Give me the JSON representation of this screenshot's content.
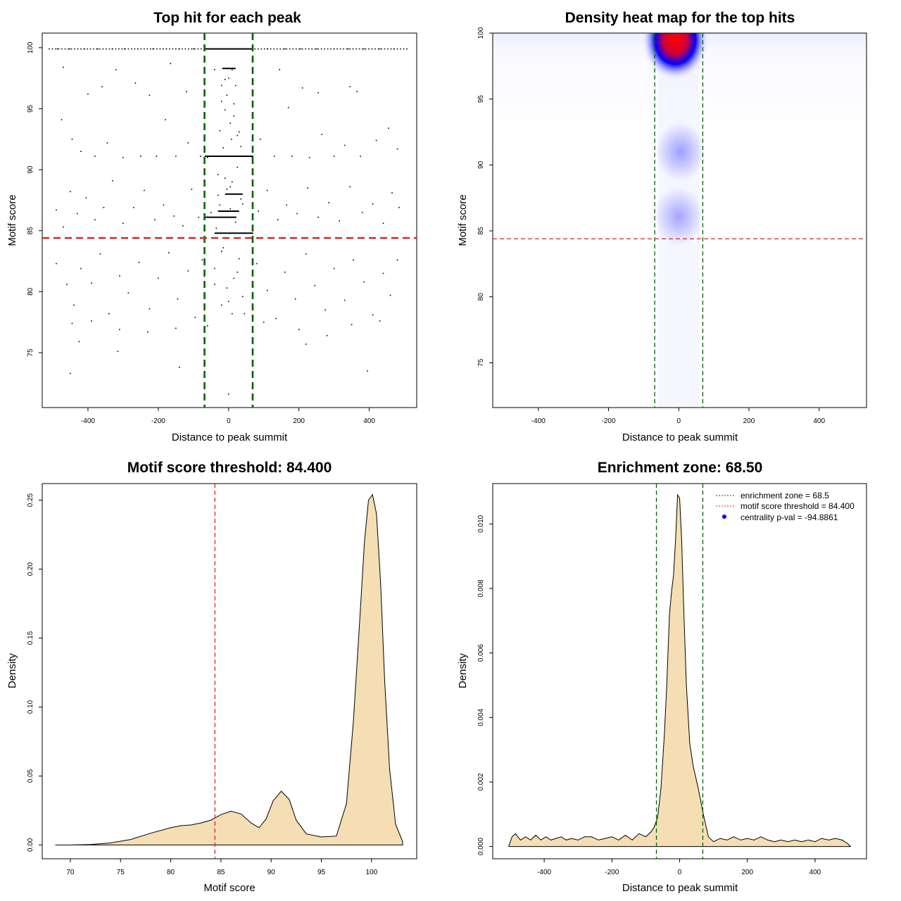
{
  "colors": {
    "points": "#000000",
    "zone_line": "#006400",
    "threshold_line": "#d62728",
    "density_fill": "#f5deb3",
    "heat_low": "#ffffff",
    "heat_mid": "#0000ff",
    "heat_high": "#ff0000"
  },
  "chart_data": [
    {
      "type": "scatter",
      "title": "Top hit for each peak",
      "xlabel": "Distance to peak summit",
      "ylabel": "Motif score",
      "xlim": [
        -530,
        535
      ],
      "ylim": [
        70.5,
        101.2
      ],
      "xticks": [
        -400,
        -200,
        0,
        200,
        400
      ],
      "yticks": [
        75,
        80,
        85,
        90,
        95,
        100
      ],
      "tick_labels_x": [
        "-400",
        "-200",
        "0",
        "200",
        "400"
      ],
      "tick_labels_y": [
        "75",
        "80",
        "85",
        "90",
        "95",
        "100"
      ],
      "score_threshold": 84.4,
      "enrichment_zone": [
        -68.5,
        68.5
      ],
      "points": [
        [
          -487,
          99.9
        ],
        [
          -452,
          99.9
        ],
        [
          -410,
          99.9
        ],
        [
          -372,
          99.9
        ],
        [
          -331,
          99.9
        ],
        [
          -296,
          99.9
        ],
        [
          -258,
          99.9
        ],
        [
          -215,
          99.9
        ],
        [
          -177,
          99.9
        ],
        [
          -140,
          99.9
        ],
        [
          -100,
          99.9
        ],
        [
          -60,
          99.9
        ],
        [
          -30,
          99.9
        ],
        [
          -10,
          99.9
        ],
        [
          10,
          99.9
        ],
        [
          30,
          99.9
        ],
        [
          60,
          99.9
        ],
        [
          110,
          99.9
        ],
        [
          160,
          99.9
        ],
        [
          205,
          99.9
        ],
        [
          250,
          99.9
        ],
        [
          300,
          99.9
        ],
        [
          340,
          99.9
        ],
        [
          385,
          99.9
        ],
        [
          430,
          99.9
        ],
        [
          470,
          99.9
        ],
        [
          -470,
          98.4
        ],
        [
          -400,
          96.2
        ],
        [
          -360,
          96.8
        ],
        [
          -320,
          98.2
        ],
        [
          -265,
          97.1
        ],
        [
          -225,
          96.1
        ],
        [
          -165,
          98.7
        ],
        [
          -120,
          96.4
        ],
        [
          -40,
          98.2
        ],
        [
          -20,
          96.9
        ],
        [
          -10,
          94.9
        ],
        [
          5,
          93.8
        ],
        [
          15,
          95.4
        ],
        [
          25,
          92.8
        ],
        [
          -25,
          93.2
        ],
        [
          35,
          91.9
        ],
        [
          0,
          97.5
        ],
        [
          10,
          98.2
        ],
        [
          -5,
          96.1
        ],
        [
          20,
          96.9
        ],
        [
          145,
          98.2
        ],
        [
          170,
          95.1
        ],
        [
          210,
          96.7
        ],
        [
          255,
          96.3
        ],
        [
          345,
          96.8
        ],
        [
          365,
          96.4
        ],
        [
          -475,
          94.1
        ],
        [
          -445,
          92.5
        ],
        [
          -420,
          91.5
        ],
        [
          -380,
          91.1
        ],
        [
          -345,
          92.2
        ],
        [
          -300,
          91.0
        ],
        [
          -250,
          91.1
        ],
        [
          -205,
          91.1
        ],
        [
          -180,
          94.1
        ],
        [
          -150,
          91.1
        ],
        [
          -115,
          92.2
        ],
        [
          -80,
          91.1
        ],
        [
          -60,
          91.0
        ],
        [
          60,
          91.1
        ],
        [
          90,
          92.5
        ],
        [
          130,
          91.1
        ],
        [
          180,
          91.1
        ],
        [
          230,
          91.0
        ],
        [
          265,
          92.9
        ],
        [
          300,
          91.1
        ],
        [
          330,
          92.0
        ],
        [
          375,
          91.1
        ],
        [
          420,
          92.4
        ],
        [
          455,
          93.4
        ],
        [
          480,
          91.7
        ],
        [
          -490,
          86.7
        ],
        [
          -470,
          85.3
        ],
        [
          -450,
          88.2
        ],
        [
          -430,
          86.4
        ],
        [
          -405,
          87.7
        ],
        [
          -380,
          85.9
        ],
        [
          -355,
          86.9
        ],
        [
          -330,
          89.1
        ],
        [
          -300,
          85.6
        ],
        [
          -270,
          86.9
        ],
        [
          -240,
          88.3
        ],
        [
          -210,
          85.9
        ],
        [
          -185,
          87.1
        ],
        [
          -155,
          86.2
        ],
        [
          -130,
          85.4
        ],
        [
          -105,
          88.4
        ],
        [
          -85,
          86.1
        ],
        [
          -50,
          86.5
        ],
        [
          -30,
          87.9
        ],
        [
          -10,
          89.3
        ],
        [
          5,
          88.6
        ],
        [
          20,
          86.6
        ],
        [
          40,
          87.2
        ],
        [
          85,
          86.6
        ],
        [
          110,
          88.3
        ],
        [
          140,
          85.9
        ],
        [
          165,
          87.1
        ],
        [
          195,
          86.4
        ],
        [
          225,
          88.5
        ],
        [
          255,
          86.1
        ],
        [
          285,
          87.3
        ],
        [
          315,
          85.8
        ],
        [
          345,
          88.6
        ],
        [
          380,
          86.5
        ],
        [
          410,
          87.2
        ],
        [
          440,
          85.6
        ],
        [
          465,
          88.1
        ],
        [
          485,
          86.9
        ],
        [
          -490,
          82.3
        ],
        [
          -460,
          80.6
        ],
        [
          -440,
          78.9
        ],
        [
          -420,
          81.9
        ],
        [
          -390,
          80.7
        ],
        [
          -365,
          83.1
        ],
        [
          -340,
          78.2
        ],
        [
          -310,
          81.3
        ],
        [
          -285,
          79.9
        ],
        [
          -255,
          82.4
        ],
        [
          -225,
          78.6
        ],
        [
          -200,
          81.1
        ],
        [
          -170,
          83.2
        ],
        [
          -145,
          79.4
        ],
        [
          -115,
          81.7
        ],
        [
          -95,
          77.9
        ],
        [
          -75,
          82.6
        ],
        [
          -40,
          80.6
        ],
        [
          -20,
          83.3
        ],
        [
          0,
          79.2
        ],
        [
          25,
          81.6
        ],
        [
          45,
          78.2
        ],
        [
          80,
          82.3
        ],
        [
          110,
          80.1
        ],
        [
          135,
          77.8
        ],
        [
          160,
          81.6
        ],
        [
          190,
          79.4
        ],
        [
          220,
          83.1
        ],
        [
          245,
          80.5
        ],
        [
          275,
          78.5
        ],
        [
          300,
          81.9
        ],
        [
          330,
          79.3
        ],
        [
          355,
          82.6
        ],
        [
          385,
          80.8
        ],
        [
          410,
          78.1
        ],
        [
          440,
          81.5
        ],
        [
          460,
          79.7
        ],
        [
          480,
          82.6
        ],
        [
          -445,
          77.4
        ],
        [
          -390,
          77.6
        ],
        [
          -310,
          76.9
        ],
        [
          -230,
          76.7
        ],
        [
          -150,
          77.0
        ],
        [
          -60,
          77.2
        ],
        [
          100,
          77.5
        ],
        [
          200,
          76.9
        ],
        [
          280,
          76.4
        ],
        [
          350,
          77.3
        ],
        [
          430,
          77.6
        ],
        [
          -425,
          75.9
        ],
        [
          -315,
          75.1
        ],
        [
          -140,
          73.8
        ],
        [
          220,
          75.7
        ],
        [
          395,
          73.5
        ],
        [
          -450,
          73.3
        ],
        [
          0,
          71.6
        ],
        [
          -10,
          97.4
        ],
        [
          15,
          94.4
        ],
        [
          -20,
          95.6
        ],
        [
          30,
          93.1
        ],
        [
          8,
          92.5
        ],
        [
          -15,
          91.8
        ],
        [
          25,
          90.2
        ],
        [
          -30,
          89.6
        ],
        [
          10,
          89.0
        ],
        [
          -5,
          88.4
        ],
        [
          35,
          87.6
        ],
        [
          -25,
          87.1
        ],
        [
          5,
          86.8
        ],
        [
          20,
          85.7
        ],
        [
          -35,
          85.2
        ],
        [
          0,
          84.4
        ],
        [
          -15,
          83.6
        ],
        [
          30,
          82.7
        ],
        [
          -40,
          81.9
        ],
        [
          15,
          81.1
        ],
        [
          -5,
          80.3
        ],
        [
          40,
          79.6
        ],
        [
          -20,
          78.9
        ],
        [
          10,
          78.2
        ]
      ],
      "hlines": [
        {
          "y": 91.1,
          "x0": -68,
          "x1": 70
        },
        {
          "y": 86.1,
          "x0": -68,
          "x1": 22
        },
        {
          "y": 86.6,
          "x0": -30,
          "x1": 30
        },
        {
          "y": 88.0,
          "x0": -10,
          "x1": 40
        },
        {
          "y": 84.8,
          "x0": -40,
          "x1": 70
        },
        {
          "y": 98.3,
          "x0": -18,
          "x1": 20
        }
      ],
      "top_band": {
        "y": 99.9,
        "x0": -68,
        "x1": 68
      }
    },
    {
      "type": "heatmap",
      "title": "Density heat map for the top hits",
      "xlabel": "Distance to peak summit",
      "ylabel": "Motif score",
      "xlim": [
        -530,
        535
      ],
      "ylim": [
        71.6,
        100.0
      ],
      "xticks": [
        -400,
        -200,
        0,
        200,
        400
      ],
      "yticks": [
        75,
        80,
        85,
        90,
        95,
        100
      ],
      "tick_labels_x": [
        "-400",
        "-200",
        "0",
        "200",
        "400"
      ],
      "tick_labels_y": [
        "75",
        "80",
        "85",
        "90",
        "95",
        "100"
      ],
      "score_threshold": 84.4,
      "enrichment_zone": [
        -68.5,
        68.5
      ],
      "hotspots": [
        {
          "x": -10,
          "y": 99.5,
          "intensity": 1.0
        },
        {
          "x": 5,
          "y": 91.0,
          "intensity": 0.25
        },
        {
          "x": 0,
          "y": 86.1,
          "intensity": 0.2
        }
      ]
    },
    {
      "type": "area",
      "title": "Motif score threshold: 84.400",
      "xlabel": "Motif score",
      "ylabel": "Density",
      "xlim": [
        67.2,
        104.5
      ],
      "ylim": [
        -0.01,
        0.262
      ],
      "xticks": [
        70,
        75,
        80,
        85,
        90,
        95,
        100
      ],
      "yticks": [
        0.0,
        0.05,
        0.1,
        0.15,
        0.2,
        0.25
      ],
      "tick_labels_x": [
        "70",
        "75",
        "80",
        "85",
        "90",
        "95",
        "100"
      ],
      "tick_labels_y": [
        "0.00",
        "0.05",
        "0.10",
        "0.15",
        "0.20",
        "0.25"
      ],
      "score_threshold": 84.4,
      "x": [
        68.5,
        70,
        72,
        74,
        76,
        78,
        80,
        81,
        82,
        83,
        84,
        85,
        86,
        87,
        88,
        88.8,
        89.5,
        90.2,
        91,
        91.8,
        92.5,
        93.5,
        95,
        96.5,
        97.5,
        98.2,
        98.8,
        99.3,
        99.7,
        100.1,
        100.5,
        100.9,
        101.3,
        101.8,
        102.4,
        103.1
      ],
      "y": [
        0.0,
        0.0,
        0.0003,
        0.0015,
        0.004,
        0.0085,
        0.0125,
        0.014,
        0.0145,
        0.016,
        0.018,
        0.022,
        0.0245,
        0.0225,
        0.016,
        0.0125,
        0.019,
        0.032,
        0.039,
        0.033,
        0.018,
        0.008,
        0.0058,
        0.0065,
        0.03,
        0.09,
        0.16,
        0.22,
        0.25,
        0.254,
        0.24,
        0.19,
        0.12,
        0.055,
        0.015,
        0.0025
      ]
    },
    {
      "type": "area",
      "title": "Enrichment zone: 68.50",
      "xlabel": "Distance to peak summit",
      "ylabel": "Density",
      "xlim": [
        -552,
        552
      ],
      "ylim": [
        -0.00038,
        0.01125
      ],
      "xticks": [
        -400,
        -200,
        0,
        200,
        400
      ],
      "yticks": [
        0.0,
        0.002,
        0.004,
        0.006,
        0.008,
        0.01
      ],
      "tick_labels_x": [
        "-400",
        "-200",
        "0",
        "200",
        "400"
      ],
      "tick_labels_y": [
        "0.000",
        "0.002",
        "0.004",
        "0.006",
        "0.008",
        "0.010"
      ],
      "enrichment_zone": [
        -68.5,
        68.5
      ],
      "x": [
        -505,
        -495,
        -485,
        -470,
        -455,
        -440,
        -425,
        -410,
        -395,
        -380,
        -365,
        -350,
        -335,
        -320,
        -300,
        -280,
        -260,
        -240,
        -220,
        -200,
        -180,
        -160,
        -140,
        -120,
        -100,
        -85,
        -75,
        -65,
        -55,
        -45,
        -38,
        -30,
        -24,
        -18,
        -12,
        -6,
        0,
        6,
        12,
        20,
        30,
        40,
        55,
        70,
        85,
        100,
        120,
        140,
        160,
        180,
        200,
        220,
        240,
        260,
        280,
        300,
        320,
        340,
        360,
        380,
        400,
        420,
        440,
        460,
        480,
        495,
        505
      ],
      "y": [
        0.0,
        0.0003,
        0.0004,
        0.0002,
        0.0003,
        0.0002,
        0.00035,
        0.0002,
        0.0003,
        0.0002,
        0.00025,
        0.0003,
        0.0002,
        0.00025,
        0.0002,
        0.0003,
        0.0003,
        0.0002,
        0.00025,
        0.0003,
        0.0002,
        0.00035,
        0.0002,
        0.0004,
        0.0003,
        0.00045,
        0.0006,
        0.0009,
        0.0018,
        0.0035,
        0.005,
        0.0072,
        0.0079,
        0.0084,
        0.0095,
        0.0109,
        0.0108,
        0.0095,
        0.0074,
        0.005,
        0.0032,
        0.0025,
        0.0018,
        0.001,
        0.0003,
        0.00015,
        0.00025,
        0.0002,
        0.0003,
        0.0002,
        0.00025,
        0.0002,
        0.0003,
        0.0002,
        0.00015,
        0.0002,
        0.00015,
        0.0002,
        0.00015,
        0.0002,
        0.00015,
        0.00025,
        0.0002,
        0.00025,
        0.0002,
        0.0001,
        0.0
      ]
    }
  ],
  "legend": {
    "entries": [
      "enrichment zone = 68.5",
      "motif score threshold = 84.400",
      "centrality p-val = -94.8861"
    ]
  }
}
